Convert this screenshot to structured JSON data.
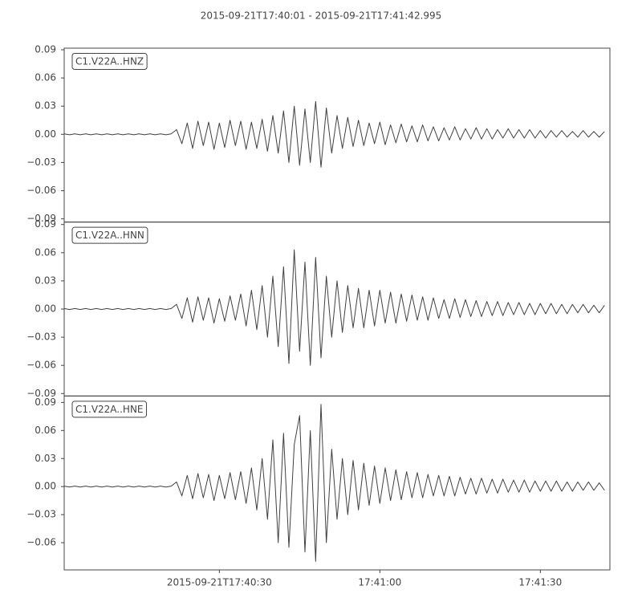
{
  "title": "2015-09-21T17:40:01  -  2015-09-21T17:41:42.995",
  "chart_data": {
    "type": "line",
    "xlim": [
      "2015-09-21T17:40:01",
      "2015-09-21T17:41:43"
    ],
    "xticks": [
      {
        "value": "2015-09-21T17:40:30",
        "label": "2015-09-21T17:40:30"
      },
      {
        "value": "2015-09-21T17:41:00",
        "label": "17:41:00"
      },
      {
        "value": "2015-09-21T17:41:30",
        "label": "17:41:30"
      }
    ],
    "x": [
      "2015-09-21T17:40:01",
      "2015-09-21T17:40:02",
      "2015-09-21T17:40:03",
      "2015-09-21T17:40:04",
      "2015-09-21T17:40:05",
      "2015-09-21T17:40:06",
      "2015-09-21T17:40:07",
      "2015-09-21T17:40:08",
      "2015-09-21T17:40:09",
      "2015-09-21T17:40:10",
      "2015-09-21T17:40:11",
      "2015-09-21T17:40:12",
      "2015-09-21T17:40:13",
      "2015-09-21T17:40:14",
      "2015-09-21T17:40:15",
      "2015-09-21T17:40:16",
      "2015-09-21T17:40:17",
      "2015-09-21T17:40:18",
      "2015-09-21T17:40:19",
      "2015-09-21T17:40:20",
      "2015-09-21T17:40:21",
      "2015-09-21T17:40:22",
      "2015-09-21T17:40:23",
      "2015-09-21T17:40:24",
      "2015-09-21T17:40:25",
      "2015-09-21T17:40:26",
      "2015-09-21T17:40:27",
      "2015-09-21T17:40:28",
      "2015-09-21T17:40:29",
      "2015-09-21T17:40:30",
      "2015-09-21T17:40:31",
      "2015-09-21T17:40:32",
      "2015-09-21T17:40:33",
      "2015-09-21T17:40:34",
      "2015-09-21T17:40:35",
      "2015-09-21T17:40:36",
      "2015-09-21T17:40:37",
      "2015-09-21T17:40:38",
      "2015-09-21T17:40:39",
      "2015-09-21T17:40:40",
      "2015-09-21T17:40:41",
      "2015-09-21T17:40:42",
      "2015-09-21T17:40:43",
      "2015-09-21T17:40:44",
      "2015-09-21T17:40:45",
      "2015-09-21T17:40:46",
      "2015-09-21T17:40:47",
      "2015-09-21T17:40:48",
      "2015-09-21T17:40:49",
      "2015-09-21T17:40:50",
      "2015-09-21T17:40:51",
      "2015-09-21T17:40:52",
      "2015-09-21T17:40:53",
      "2015-09-21T17:40:54",
      "2015-09-21T17:40:55",
      "2015-09-21T17:40:56",
      "2015-09-21T17:40:57",
      "2015-09-21T17:40:58",
      "2015-09-21T17:40:59",
      "2015-09-21T17:41:00",
      "2015-09-21T17:41:01",
      "2015-09-21T17:41:02",
      "2015-09-21T17:41:03",
      "2015-09-21T17:41:04",
      "2015-09-21T17:41:05",
      "2015-09-21T17:41:06",
      "2015-09-21T17:41:07",
      "2015-09-21T17:41:08",
      "2015-09-21T17:41:09",
      "2015-09-21T17:41:10",
      "2015-09-21T17:41:11",
      "2015-09-21T17:41:12",
      "2015-09-21T17:41:13",
      "2015-09-21T17:41:14",
      "2015-09-21T17:41:15",
      "2015-09-21T17:41:16",
      "2015-09-21T17:41:17",
      "2015-09-21T17:41:18",
      "2015-09-21T17:41:19",
      "2015-09-21T17:41:20",
      "2015-09-21T17:41:21",
      "2015-09-21T17:41:22",
      "2015-09-21T17:41:23",
      "2015-09-21T17:41:24",
      "2015-09-21T17:41:25",
      "2015-09-21T17:41:26",
      "2015-09-21T17:41:27",
      "2015-09-21T17:41:28",
      "2015-09-21T17:41:29",
      "2015-09-21T17:41:30",
      "2015-09-21T17:41:31",
      "2015-09-21T17:41:32",
      "2015-09-21T17:41:33",
      "2015-09-21T17:41:34",
      "2015-09-21T17:41:35",
      "2015-09-21T17:41:36",
      "2015-09-21T17:41:37",
      "2015-09-21T17:41:38",
      "2015-09-21T17:41:39",
      "2015-09-21T17:41:40",
      "2015-09-21T17:41:41",
      "2015-09-21T17:41:42"
    ],
    "series": [
      {
        "name": "C1.V22A..HNZ",
        "color": "#404040",
        "ylim": [
          -0.0934,
          0.0917
        ],
        "yticks": [
          {
            "value": -0.09,
            "label": "−0.09"
          },
          {
            "value": -0.06,
            "label": "−0.06"
          },
          {
            "value": -0.03,
            "label": "−0.03"
          },
          {
            "value": 0,
            "label": "0.00"
          },
          0.03,
          0.06,
          0.09
        ],
        "values": [
          0.0005,
          -0.0005,
          0.0005,
          -0.0005,
          0.0005,
          -0.0005,
          0.0005,
          -0.0005,
          0.0005,
          -0.0005,
          0.0005,
          -0.0005,
          0.0005,
          -0.0005,
          0.0005,
          -0.0005,
          0.0005,
          -0.0005,
          0.0005,
          -0.0005,
          0.0005,
          0.005,
          -0.01,
          0.012,
          -0.015,
          0.014,
          -0.012,
          0.013,
          -0.016,
          0.012,
          -0.014,
          0.015,
          -0.012,
          0.014,
          -0.016,
          0.013,
          -0.015,
          0.016,
          -0.018,
          0.02,
          -0.02,
          0.025,
          -0.03,
          0.03,
          -0.033,
          0.027,
          -0.03,
          0.035,
          -0.035,
          0.028,
          -0.02,
          0.02,
          -0.015,
          0.018,
          -0.013,
          0.015,
          -0.012,
          0.012,
          -0.01,
          0.013,
          -0.011,
          0.01,
          -0.009,
          0.011,
          -0.008,
          0.009,
          -0.008,
          0.01,
          -0.007,
          0.008,
          -0.007,
          0.007,
          -0.006,
          0.008,
          -0.006,
          0.006,
          -0.005,
          0.007,
          -0.005,
          0.006,
          -0.005,
          0.005,
          -0.004,
          0.006,
          -0.004,
          0.005,
          -0.004,
          0.005,
          -0.004,
          0.004,
          -0.004,
          0.004,
          -0.003,
          0.004,
          -0.003,
          0.003,
          -0.003,
          0.004,
          -0.003,
          0.003,
          -0.003,
          0.003
        ]
      },
      {
        "name": "C1.V22A..HNN",
        "color": "#404040",
        "ylim": [
          -0.0926,
          0.0926
        ],
        "yticks": [
          {
            "value": -0.09,
            "label": "−0.09"
          },
          {
            "value": -0.06,
            "label": "−0.06"
          },
          {
            "value": -0.03,
            "label": "−0.03"
          },
          {
            "value": 0,
            "label": "0.00"
          },
          0.03,
          0.06,
          0.09
        ],
        "values": [
          0.0005,
          -0.0005,
          0.0005,
          -0.0005,
          0.0005,
          -0.0005,
          0.0005,
          -0.0005,
          0.0005,
          -0.0005,
          0.0005,
          -0.0005,
          0.0005,
          -0.0005,
          0.0005,
          -0.0005,
          0.0005,
          -0.0005,
          0.0005,
          -0.0005,
          0.0005,
          0.005,
          -0.01,
          0.012,
          -0.014,
          0.013,
          -0.012,
          0.012,
          -0.015,
          0.011,
          -0.013,
          0.014,
          -0.012,
          0.016,
          -0.018,
          0.02,
          -0.022,
          0.025,
          -0.03,
          0.035,
          -0.04,
          0.045,
          -0.058,
          0.063,
          -0.045,
          0.05,
          -0.06,
          0.055,
          -0.052,
          0.035,
          -0.03,
          0.03,
          -0.025,
          0.025,
          -0.02,
          0.022,
          -0.02,
          0.02,
          -0.018,
          0.02,
          -0.015,
          0.018,
          -0.015,
          0.016,
          -0.013,
          0.015,
          -0.012,
          0.013,
          -0.012,
          0.012,
          -0.01,
          0.01,
          -0.01,
          0.011,
          -0.009,
          0.01,
          -0.008,
          0.009,
          -0.008,
          0.008,
          -0.007,
          0.008,
          -0.007,
          0.007,
          -0.006,
          0.007,
          -0.006,
          0.006,
          -0.006,
          0.006,
          -0.005,
          0.006,
          -0.005,
          0.005,
          -0.005,
          0.005,
          -0.004,
          0.005,
          -0.004,
          0.004,
          -0.004,
          0.004
        ]
      },
      {
        "name": "C1.V22A..HNE",
        "color": "#404040",
        "ylim": [
          -0.0891,
          0.0969
        ],
        "yticks": [
          {
            "value": -0.06,
            "label": "−0.06"
          },
          {
            "value": -0.03,
            "label": "−0.03"
          },
          {
            "value": 0,
            "label": "0.00"
          },
          0.03,
          0.06,
          0.09
        ],
        "values": [
          0.0005,
          -0.0005,
          0.0005,
          -0.0005,
          0.0005,
          -0.0005,
          0.0005,
          -0.0005,
          0.0005,
          -0.0005,
          0.0005,
          -0.0005,
          0.0005,
          -0.0005,
          0.0005,
          -0.0005,
          0.0005,
          -0.0005,
          0.0005,
          -0.0005,
          0.0005,
          0.005,
          -0.01,
          0.012,
          -0.013,
          0.014,
          -0.012,
          0.013,
          -0.015,
          0.012,
          -0.013,
          0.015,
          -0.014,
          0.016,
          -0.018,
          0.02,
          -0.025,
          0.03,
          -0.035,
          0.05,
          -0.06,
          0.057,
          -0.065,
          0.045,
          0.076,
          -0.07,
          0.06,
          -0.08,
          0.088,
          -0.06,
          0.04,
          -0.035,
          0.03,
          -0.03,
          0.028,
          -0.025,
          0.025,
          -0.02,
          0.022,
          -0.018,
          0.02,
          -0.015,
          0.018,
          -0.014,
          0.016,
          -0.012,
          0.015,
          -0.012,
          0.013,
          -0.01,
          0.012,
          -0.01,
          0.011,
          -0.01,
          0.01,
          -0.008,
          0.009,
          -0.008,
          0.009,
          -0.007,
          0.008,
          -0.007,
          0.008,
          -0.006,
          0.007,
          -0.006,
          0.007,
          -0.006,
          0.006,
          -0.005,
          0.006,
          -0.005,
          0.006,
          -0.005,
          0.005,
          -0.005,
          0.005,
          -0.004,
          0.005,
          -0.004,
          0.004,
          -0.004
        ]
      }
    ]
  }
}
